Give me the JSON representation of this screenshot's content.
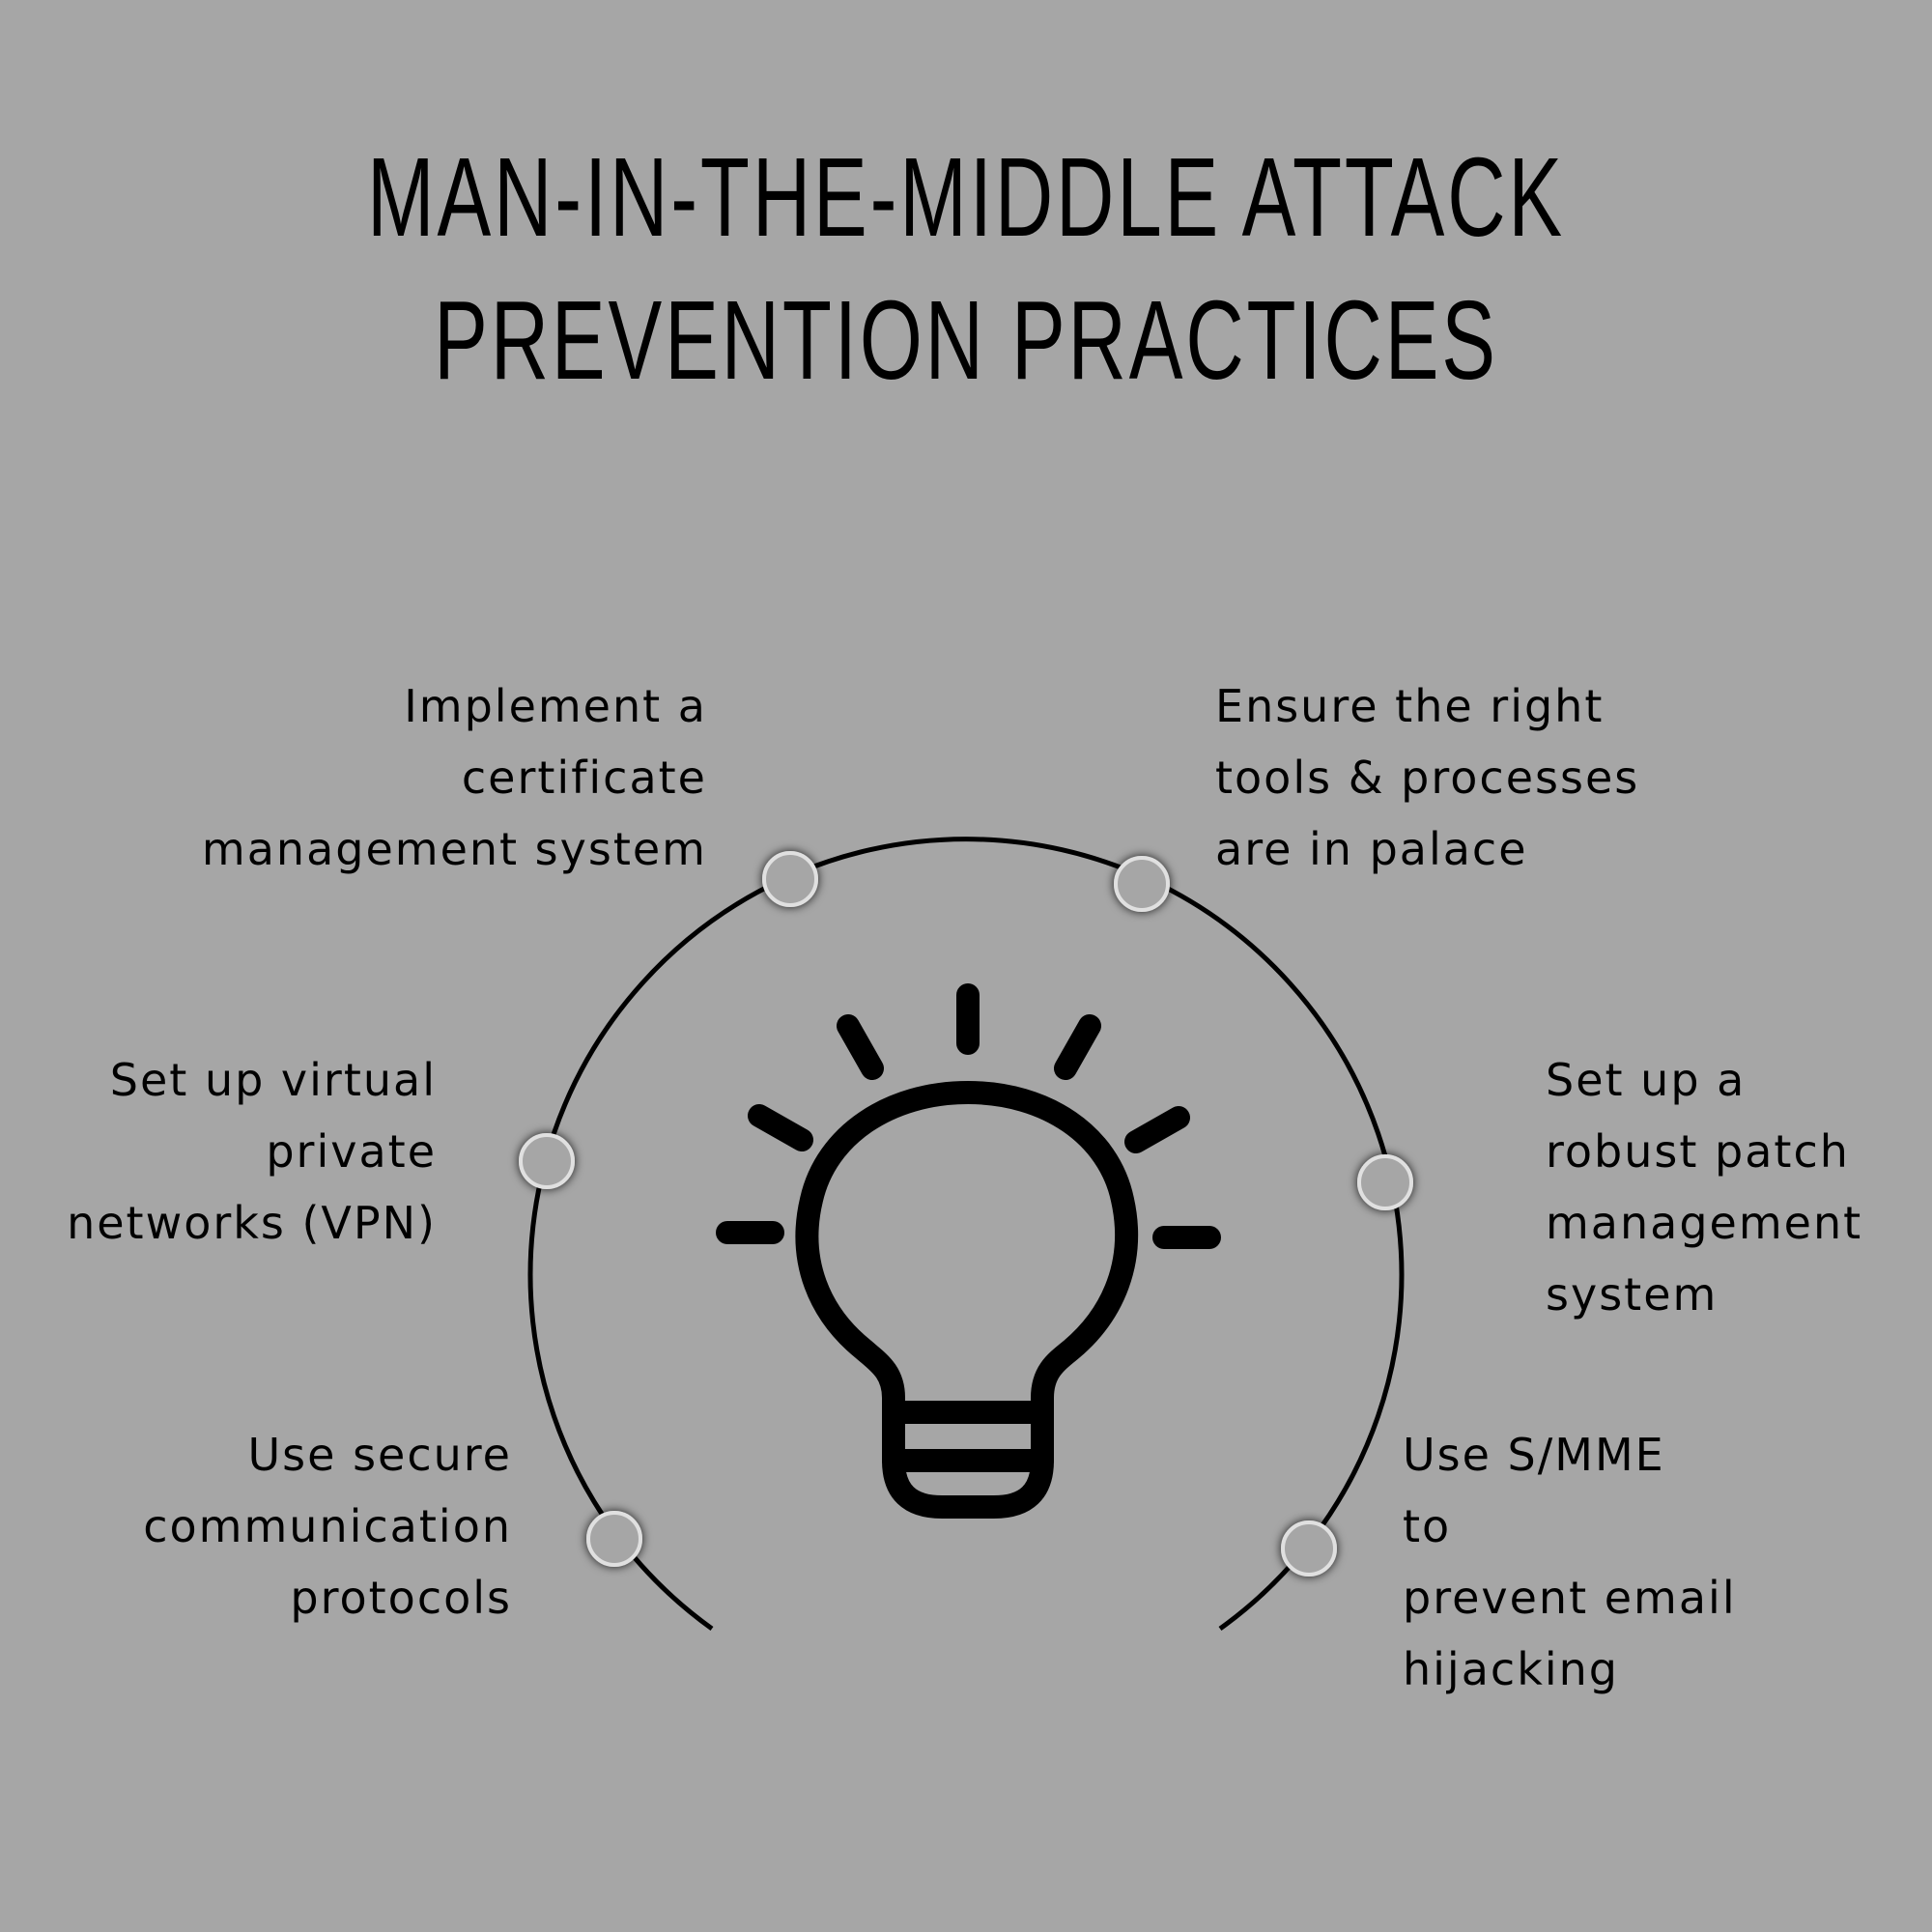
{
  "title": {
    "line1": "MAN-IN-THE-MIDDLE ATTACK",
    "line2": "PREVENTION PRACTICES"
  },
  "center_icon": "lightbulb-icon",
  "practices": {
    "certificate": "Implement a\ncertificate\nmanagement system",
    "tools": "Ensure the right\ntools & processes\nare in palace",
    "vpn": "Set up virtual\nprivate\nnetworks (VPN)",
    "patch": "Set up a\nrobust patch\nmanagement\nsystem",
    "protocols": "Use secure\ncommunication\nprotocols",
    "smime": "Use      S/MME\nto\nprevent email\nhijacking"
  },
  "colors": {
    "background": "#a6a6a6",
    "ink": "#000000",
    "node_fill": "#a6a6a6"
  }
}
